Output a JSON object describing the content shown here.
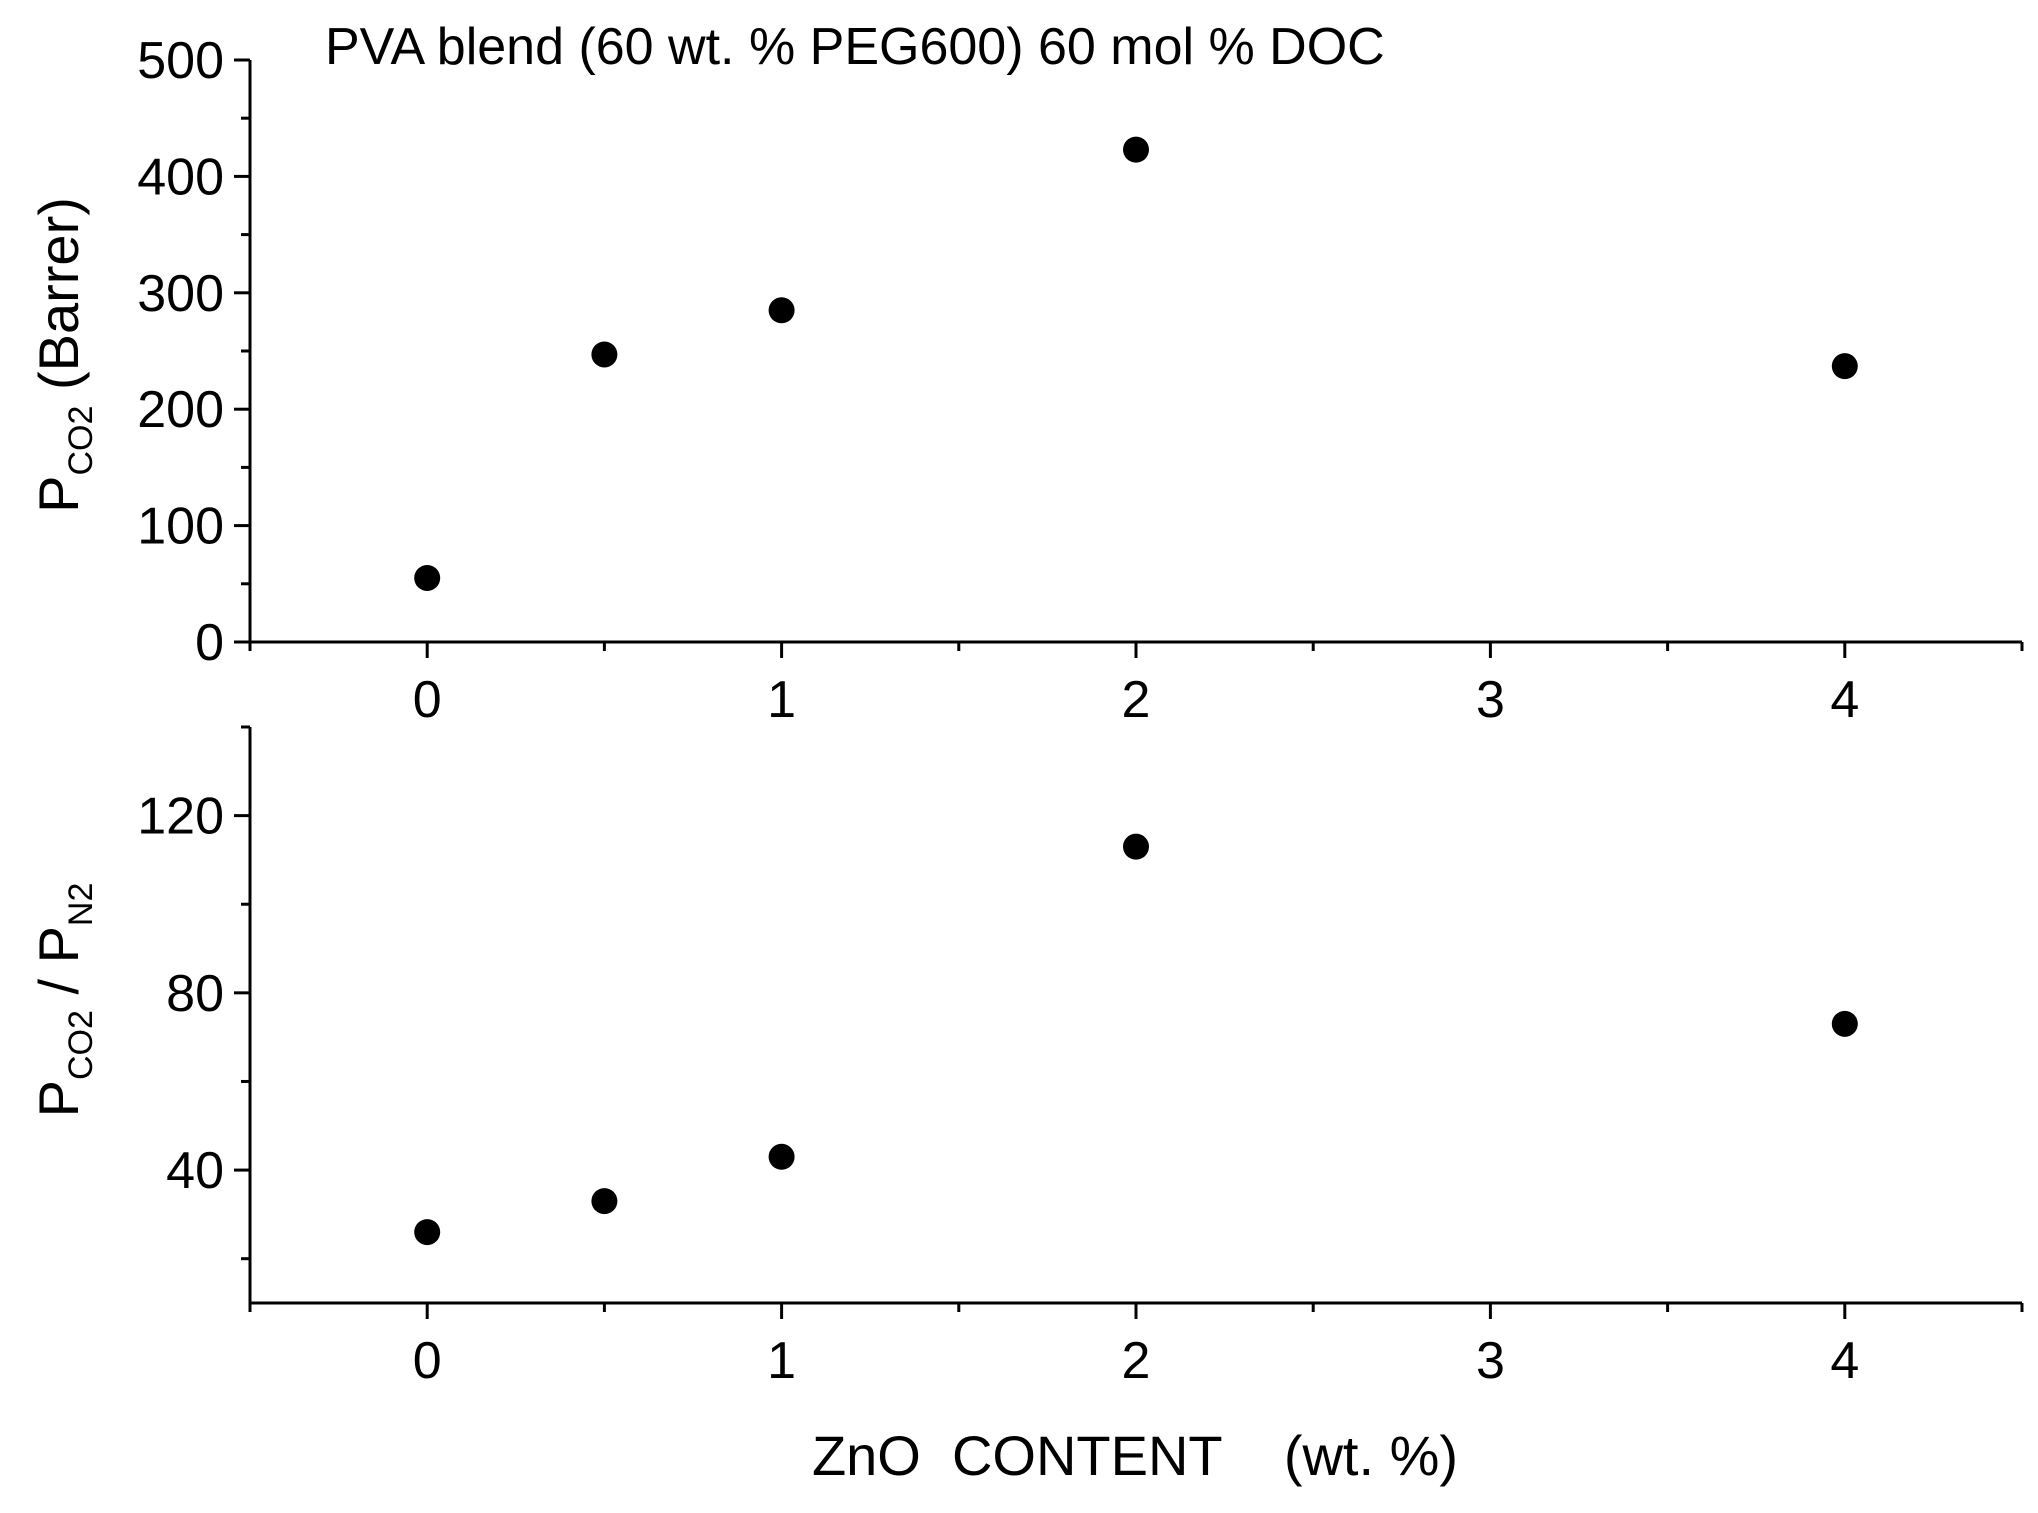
{
  "chart_data": [
    {
      "type": "scatter",
      "title": "PVA blend (60 wt. % PEG600) 60 mol % DOC",
      "xlabel": "",
      "ylabel": {
        "main": "P",
        "sub": "CO2",
        "suffix": " (Barrer)"
      },
      "xlim": [
        -0.5,
        4.5
      ],
      "ylim": [
        0,
        500
      ],
      "xticks": [
        0,
        1,
        2,
        3,
        4
      ],
      "xtick_labels": [
        "0",
        "1",
        "2",
        "3",
        "4"
      ],
      "yticks": [
        0,
        100,
        200,
        300,
        400,
        500
      ],
      "ytick_labels": [
        "0",
        "100",
        "200",
        "300",
        "400",
        "500"
      ],
      "x": [
        0,
        0.5,
        1,
        2,
        4
      ],
      "y": [
        55,
        247,
        285,
        423,
        237
      ],
      "color": "#000000"
    },
    {
      "type": "scatter",
      "title": "",
      "xlabel": "ZnO  CONTENT    (wt. %)",
      "ylabel": {
        "p1": "P",
        "sub1": "CO2",
        "mid": " / P",
        "sub2": "N2"
      },
      "xlim": [
        -0.5,
        4.5
      ],
      "ylim": [
        10,
        140
      ],
      "xticks": [
        0,
        1,
        2,
        3,
        4
      ],
      "xtick_labels": [
        "0",
        "1",
        "2",
        "3",
        "4"
      ],
      "yticks": [
        40,
        80,
        120
      ],
      "ytick_labels": [
        "40",
        "80",
        "120"
      ],
      "x": [
        0,
        0.5,
        1,
        2,
        4
      ],
      "y": [
        26,
        33,
        43,
        113,
        73
      ],
      "color": "#000000"
    }
  ]
}
